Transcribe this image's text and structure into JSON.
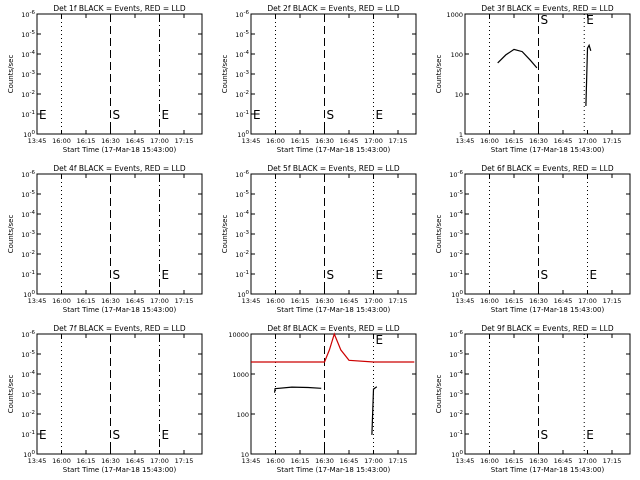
{
  "chart_data": [
    {
      "type": "line",
      "title": "Det 1f BLACK = Events, RED = LLD",
      "xlabel": "Start Time (17-Mar-18 15:43:00)",
      "ylabel": "Counts/sec",
      "xlim": [
        "13:45",
        "17:25"
      ],
      "ylim": [
        "10^0",
        "10^-6"
      ],
      "y_scale": "log",
      "x_ticks": [
        "13:45",
        "16:00",
        "16:15",
        "16:30",
        "16:45",
        "17:00",
        "17:15"
      ],
      "y_ticks": [
        "10^-6",
        "10^-5",
        "10^-4",
        "10^-3",
        "10^-2",
        "10^-1",
        "10^0"
      ],
      "markers": [
        {
          "label": "E",
          "x": "13:45",
          "style": "dotted"
        },
        {
          "label": "",
          "x": "16:00",
          "style": "dotted"
        },
        {
          "label": "S",
          "x": "16:30",
          "style": "dashed"
        },
        {
          "label": "E",
          "x": "17:00",
          "style": "dash-dot"
        }
      ],
      "series": []
    },
    {
      "type": "line",
      "title": "Det 2f BLACK = Events, RED = LLD",
      "xlabel": "Start Time (17-Mar-18 15:43:00)",
      "ylabel": "Counts/sec",
      "xlim": [
        "13:45",
        "17:25"
      ],
      "ylim": [
        "10^0",
        "10^-6"
      ],
      "y_scale": "log",
      "x_ticks": [
        "13:45",
        "16:00",
        "16:15",
        "16:30",
        "16:45",
        "17:00",
        "17:15"
      ],
      "y_ticks": [
        "10^-6",
        "10^-5",
        "10^-4",
        "10^-3",
        "10^-2",
        "10^-1",
        "10^0"
      ],
      "markers": [
        {
          "label": "E",
          "x": "13:45",
          "style": "dotted"
        },
        {
          "label": "",
          "x": "16:00",
          "style": "dotted"
        },
        {
          "label": "S",
          "x": "16:30",
          "style": "dashed"
        },
        {
          "label": "E",
          "x": "17:00",
          "style": "dotted"
        }
      ],
      "series": []
    },
    {
      "type": "line",
      "title": "Det 3f BLACK = Events, RED = LLD",
      "xlabel": "Start Time (17-Mar-18 15:43:00)",
      "ylabel": "Counts/sec",
      "xlim": [
        "13:45",
        "17:25"
      ],
      "ylim": [
        1,
        1000
      ],
      "y_scale": "log",
      "x_ticks": [
        "13:45",
        "16:00",
        "16:15",
        "16:30",
        "16:45",
        "17:00",
        "17:15"
      ],
      "y_ticks": [
        "1000",
        "100",
        "10",
        "1"
      ],
      "markers": [
        {
          "label": "",
          "x": "16:00",
          "style": "dotted"
        },
        {
          "label": "S",
          "x": "16:30",
          "style": "dashed"
        },
        {
          "label": "E",
          "x": "16:58",
          "style": "dotted"
        }
      ],
      "series": [
        {
          "name": "",
          "color": "#000000",
          "x": [
            "16:05",
            "16:10",
            "16:15",
            "16:20",
            "16:25",
            "16:29"
          ],
          "y": [
            60,
            95,
            130,
            115,
            70,
            45
          ]
        },
        {
          "name": "",
          "color": "#000000",
          "x": [
            "16:59",
            "17:00",
            "17:01",
            "17:02"
          ],
          "y": [
            5,
            140,
            165,
            120
          ]
        }
      ]
    },
    {
      "type": "line",
      "title": "Det 4f BLACK = Events, RED = LLD",
      "xlabel": "Start Time (17-Mar-18 15:43:00)",
      "ylabel": "Counts/sec",
      "xlim": [
        "13:45",
        "17:25"
      ],
      "ylim": [
        "10^0",
        "10^-6"
      ],
      "y_scale": "log",
      "x_ticks": [
        "13:45",
        "16:00",
        "16:15",
        "16:30",
        "16:45",
        "17:00",
        "17:15"
      ],
      "y_ticks": [
        "10^-6",
        "10^-5",
        "10^-4",
        "10^-3",
        "10^-2",
        "10^-1",
        "10^0"
      ],
      "markers": [
        {
          "label": "",
          "x": "16:00",
          "style": "dotted"
        },
        {
          "label": "S",
          "x": "16:30",
          "style": "dashed"
        },
        {
          "label": "E",
          "x": "17:00",
          "style": "dash-dot"
        }
      ],
      "series": []
    },
    {
      "type": "line",
      "title": "Det 5f BLACK = Events, RED = LLD",
      "xlabel": "Start Time (17-Mar-18 15:43:00)",
      "ylabel": "Counts/sec",
      "xlim": [
        "13:45",
        "17:25"
      ],
      "ylim": [
        "10^0",
        "10^-6"
      ],
      "y_scale": "log",
      "x_ticks": [
        "13:45",
        "16:00",
        "16:15",
        "16:30",
        "16:45",
        "17:00",
        "17:15"
      ],
      "y_ticks": [
        "10^-6",
        "10^-5",
        "10^-4",
        "10^-3",
        "10^-2",
        "10^-1",
        "10^0"
      ],
      "markers": [
        {
          "label": "",
          "x": "16:00",
          "style": "dotted"
        },
        {
          "label": "S",
          "x": "16:30",
          "style": "dashed"
        },
        {
          "label": "E",
          "x": "17:00",
          "style": "dotted"
        }
      ],
      "series": []
    },
    {
      "type": "line",
      "title": "Det 6f BLACK = Events, RED = LLD",
      "xlabel": "Start Time (17-Mar-18 15:43:00)",
      "ylabel": "Counts/sec",
      "xlim": [
        "13:45",
        "17:25"
      ],
      "ylim": [
        "10^0",
        "10^-6"
      ],
      "y_scale": "log",
      "x_ticks": [
        "13:45",
        "16:00",
        "16:15",
        "16:30",
        "16:45",
        "17:00",
        "17:15"
      ],
      "y_ticks": [
        "10^-6",
        "10^-5",
        "10^-4",
        "10^-3",
        "10^-2",
        "10^-1",
        "10^0"
      ],
      "markers": [
        {
          "label": "",
          "x": "16:00",
          "style": "dotted"
        },
        {
          "label": "S",
          "x": "16:30",
          "style": "dashed"
        },
        {
          "label": "E",
          "x": "17:00",
          "style": "dotted"
        }
      ],
      "series": []
    },
    {
      "type": "line",
      "title": "Det 7f BLACK = Events, RED = LLD",
      "xlabel": "Start Time (17-Mar-18 15:43:00)",
      "ylabel": "Counts/sec",
      "xlim": [
        "13:45",
        "17:25"
      ],
      "ylim": [
        "10^0",
        "10^-6"
      ],
      "y_scale": "log",
      "x_ticks": [
        "13:45",
        "16:00",
        "16:15",
        "16:30",
        "16:45",
        "17:00",
        "17:15"
      ],
      "y_ticks": [
        "10^-6",
        "10^-5",
        "10^-4",
        "10^-3",
        "10^-2",
        "10^-1",
        "10^0"
      ],
      "markers": [
        {
          "label": "E",
          "x": "13:45",
          "style": "dotted"
        },
        {
          "label": "",
          "x": "16:00",
          "style": "dotted"
        },
        {
          "label": "S",
          "x": "16:30",
          "style": "dashed"
        },
        {
          "label": "E",
          "x": "17:00",
          "style": "dash-dot"
        }
      ],
      "series": []
    },
    {
      "type": "line",
      "title": "Det 8f BLACK = Events, RED = LLD",
      "xlabel": "Start Time (17-Mar-18 15:43:00)",
      "ylabel": "",
      "xlim": [
        "13:45",
        "17:25"
      ],
      "ylim": [
        10,
        10000
      ],
      "y_scale": "log",
      "x_ticks": [
        "13:45",
        "16:00",
        "16:15",
        "16:30",
        "16:45",
        "17:00",
        "17:15"
      ],
      "y_ticks": [
        "10000",
        "1000",
        "100",
        "10"
      ],
      "markers": [
        {
          "label": "",
          "x": "16:00",
          "style": "dotted"
        },
        {
          "label": "",
          "x": "16:30",
          "style": "dashed"
        },
        {
          "label": "E",
          "x": "17:00",
          "style": "dotted"
        }
      ],
      "series": [
        {
          "name": "",
          "color": "#cc0000",
          "x": [
            "13:45",
            "16:00",
            "16:30",
            "16:33",
            "16:36",
            "16:40",
            "16:45",
            "17:00",
            "17:25"
          ],
          "y": [
            2000,
            2000,
            2000,
            4000,
            10000,
            4000,
            2200,
            2000,
            2000
          ]
        },
        {
          "name": "",
          "color": "#000000",
          "x": [
            "15:55",
            "15:58",
            "16:10",
            "16:20",
            "16:28"
          ],
          "y": [
            340,
            430,
            470,
            460,
            440
          ]
        },
        {
          "name": "",
          "color": "#000000",
          "x": [
            "16:59",
            "17:00",
            "17:02"
          ],
          "y": [
            30,
            420,
            480
          ]
        }
      ]
    },
    {
      "type": "line",
      "title": "Det 9f BLACK = Events, RED = LLD",
      "xlabel": "Start Time (17-Mar-18 15:43:00)",
      "ylabel": "Counts/sec",
      "xlim": [
        "13:45",
        "17:25"
      ],
      "ylim": [
        "10^0",
        "10^-6"
      ],
      "y_scale": "log",
      "x_ticks": [
        "13:45",
        "16:00",
        "16:15",
        "16:30",
        "16:45",
        "17:00",
        "17:15"
      ],
      "y_ticks": [
        "10^-6",
        "10^-5",
        "10^-4",
        "10^-3",
        "10^-2",
        "10^-1",
        "10^0"
      ],
      "markers": [
        {
          "label": "",
          "x": "16:00",
          "style": "dotted"
        },
        {
          "label": "S",
          "x": "16:30",
          "style": "dashed"
        },
        {
          "label": "E",
          "x": "16:58",
          "style": "dotted"
        }
      ],
      "series": []
    }
  ]
}
